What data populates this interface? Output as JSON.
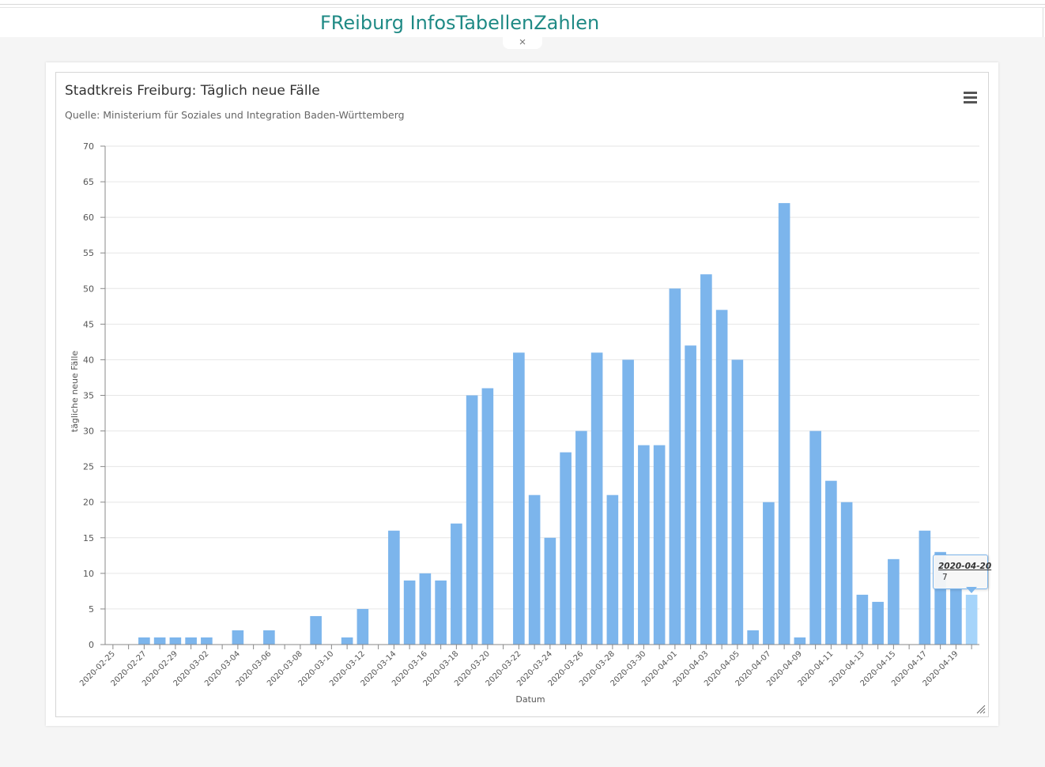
{
  "header": {
    "site_title": "FReiburg InfosTabellenZahlen",
    "close_label": "×"
  },
  "colors": {
    "bar": "#7cb5ec",
    "bar_hover": "#a6d4fa",
    "title": "#1f8a85"
  },
  "chart_data": {
    "type": "bar",
    "title": "Stadtkreis Freiburg: Täglich neue Fälle",
    "subtitle": "Quelle: Ministerium für Soziales und Integration Baden-Württemberg",
    "xlabel": "Datum",
    "ylabel": "tägliche neue Fälle",
    "ylim": [
      0,
      70
    ],
    "yticks": [
      0,
      5,
      10,
      15,
      20,
      25,
      30,
      35,
      40,
      45,
      50,
      55,
      60,
      65,
      70
    ],
    "categories": [
      "2020-02-25",
      "2020-02-26",
      "2020-02-27",
      "2020-02-28",
      "2020-02-29",
      "2020-03-01",
      "2020-03-02",
      "2020-03-03",
      "2020-03-04",
      "2020-03-05",
      "2020-03-06",
      "2020-03-07",
      "2020-03-08",
      "2020-03-09",
      "2020-03-10",
      "2020-03-11",
      "2020-03-12",
      "2020-03-13",
      "2020-03-14",
      "2020-03-15",
      "2020-03-16",
      "2020-03-17",
      "2020-03-18",
      "2020-03-19",
      "2020-03-20",
      "2020-03-21",
      "2020-03-22",
      "2020-03-23",
      "2020-03-24",
      "2020-03-25",
      "2020-03-26",
      "2020-03-27",
      "2020-03-28",
      "2020-03-29",
      "2020-03-30",
      "2020-03-31",
      "2020-04-01",
      "2020-04-02",
      "2020-04-03",
      "2020-04-04",
      "2020-04-05",
      "2020-04-06",
      "2020-04-07",
      "2020-04-08",
      "2020-04-09",
      "2020-04-10",
      "2020-04-11",
      "2020-04-12",
      "2020-04-13",
      "2020-04-14",
      "2020-04-15",
      "2020-04-16",
      "2020-04-17",
      "2020-04-18",
      "2020-04-19",
      "2020-04-20"
    ],
    "xtick_labels": [
      "2020-02-25",
      "2020-02-27",
      "2020-02-29",
      "2020-03-02",
      "2020-03-04",
      "2020-03-06",
      "2020-03-08",
      "2020-03-10",
      "2020-03-12",
      "2020-03-14",
      "2020-03-16",
      "2020-03-18",
      "2020-03-20",
      "2020-03-22",
      "2020-03-24",
      "2020-03-26",
      "2020-03-28",
      "2020-03-30",
      "2020-04-01",
      "2020-04-03",
      "2020-04-05",
      "2020-04-07",
      "2020-04-09",
      "2020-04-11",
      "2020-04-13",
      "2020-04-15",
      "2020-04-17",
      "2020-04-19"
    ],
    "values": [
      0,
      0,
      1,
      1,
      1,
      1,
      1,
      0,
      2,
      0,
      2,
      0,
      0,
      4,
      0,
      1,
      5,
      0,
      16,
      9,
      10,
      9,
      17,
      35,
      36,
      0,
      41,
      21,
      15,
      27,
      30,
      41,
      21,
      40,
      28,
      28,
      50,
      42,
      52,
      47,
      40,
      2,
      20,
      62,
      1,
      30,
      23,
      20,
      7,
      6,
      12,
      0,
      16,
      13,
      8,
      7
    ],
    "highlight_index": 55
  },
  "tooltip": {
    "date": "2020-04-20",
    "value": "7"
  }
}
